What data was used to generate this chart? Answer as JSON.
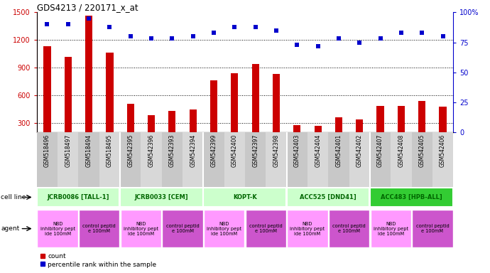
{
  "title": "GDS4213 / 220171_x_at",
  "samples": [
    "GSM518496",
    "GSM518497",
    "GSM518494",
    "GSM518495",
    "GSM542395",
    "GSM542396",
    "GSM542393",
    "GSM542394",
    "GSM542399",
    "GSM542400",
    "GSM542397",
    "GSM542398",
    "GSM542403",
    "GSM542404",
    "GSM542401",
    "GSM542402",
    "GSM542407",
    "GSM542408",
    "GSM542405",
    "GSM542406"
  ],
  "counts": [
    1130,
    1020,
    1460,
    1060,
    510,
    390,
    430,
    450,
    760,
    840,
    940,
    830,
    280,
    270,
    360,
    340,
    490,
    490,
    540,
    480
  ],
  "percentiles": [
    90,
    90,
    95,
    88,
    80,
    78,
    78,
    80,
    83,
    88,
    88,
    85,
    73,
    72,
    78,
    75,
    78,
    83,
    83,
    80
  ],
  "ylim_left": [
    200,
    1500
  ],
  "ylim_right": [
    0,
    100
  ],
  "yticks_left": [
    300,
    600,
    900,
    1200,
    1500
  ],
  "yticks_right": [
    0,
    25,
    50,
    75,
    100
  ],
  "bar_color": "#cc0000",
  "scatter_color": "#0000cc",
  "bar_width": 0.35,
  "cell_lines": [
    {
      "label": "JCRB0086 [TALL-1]",
      "start": 0,
      "end": 4,
      "color": "#ccffcc"
    },
    {
      "label": "JCRB0033 [CEM]",
      "start": 4,
      "end": 8,
      "color": "#ccffcc"
    },
    {
      "label": "KOPT-K",
      "start": 8,
      "end": 12,
      "color": "#ccffcc"
    },
    {
      "label": "ACC525 [DND41]",
      "start": 12,
      "end": 16,
      "color": "#ccffcc"
    },
    {
      "label": "ACC483 [HPB-ALL]",
      "start": 16,
      "end": 20,
      "color": "#33cc33"
    }
  ],
  "agents": [
    {
      "label": "NBD\ninhibitory pept\nide 100mM",
      "start": 0,
      "end": 2,
      "color": "#ff99ff"
    },
    {
      "label": "control peptid\ne 100mM",
      "start": 2,
      "end": 4,
      "color": "#cc55cc"
    },
    {
      "label": "NBD\ninhibitory pept\nide 100mM",
      "start": 4,
      "end": 6,
      "color": "#ff99ff"
    },
    {
      "label": "control peptid\ne 100mM",
      "start": 6,
      "end": 8,
      "color": "#cc55cc"
    },
    {
      "label": "NBD\ninhibitory pept\nide 100mM",
      "start": 8,
      "end": 10,
      "color": "#ff99ff"
    },
    {
      "label": "control peptid\ne 100mM",
      "start": 10,
      "end": 12,
      "color": "#cc55cc"
    },
    {
      "label": "NBD\ninhibitory pept\nide 100mM",
      "start": 12,
      "end": 14,
      "color": "#ff99ff"
    },
    {
      "label": "control peptid\ne 100mM",
      "start": 14,
      "end": 16,
      "color": "#cc55cc"
    },
    {
      "label": "NBD\ninhibitory pept\nide 100mM",
      "start": 16,
      "end": 18,
      "color": "#ff99ff"
    },
    {
      "label": "control peptid\ne 100mM",
      "start": 18,
      "end": 20,
      "color": "#cc55cc"
    }
  ],
  "legend_items": [
    {
      "label": "count",
      "color": "#cc0000"
    },
    {
      "label": "percentile rank within the sample",
      "color": "#0000cc"
    }
  ],
  "main_bg": "#ffffff",
  "xtick_bg": "#d0d0d0",
  "fig_width": 6.9,
  "fig_height": 3.84
}
